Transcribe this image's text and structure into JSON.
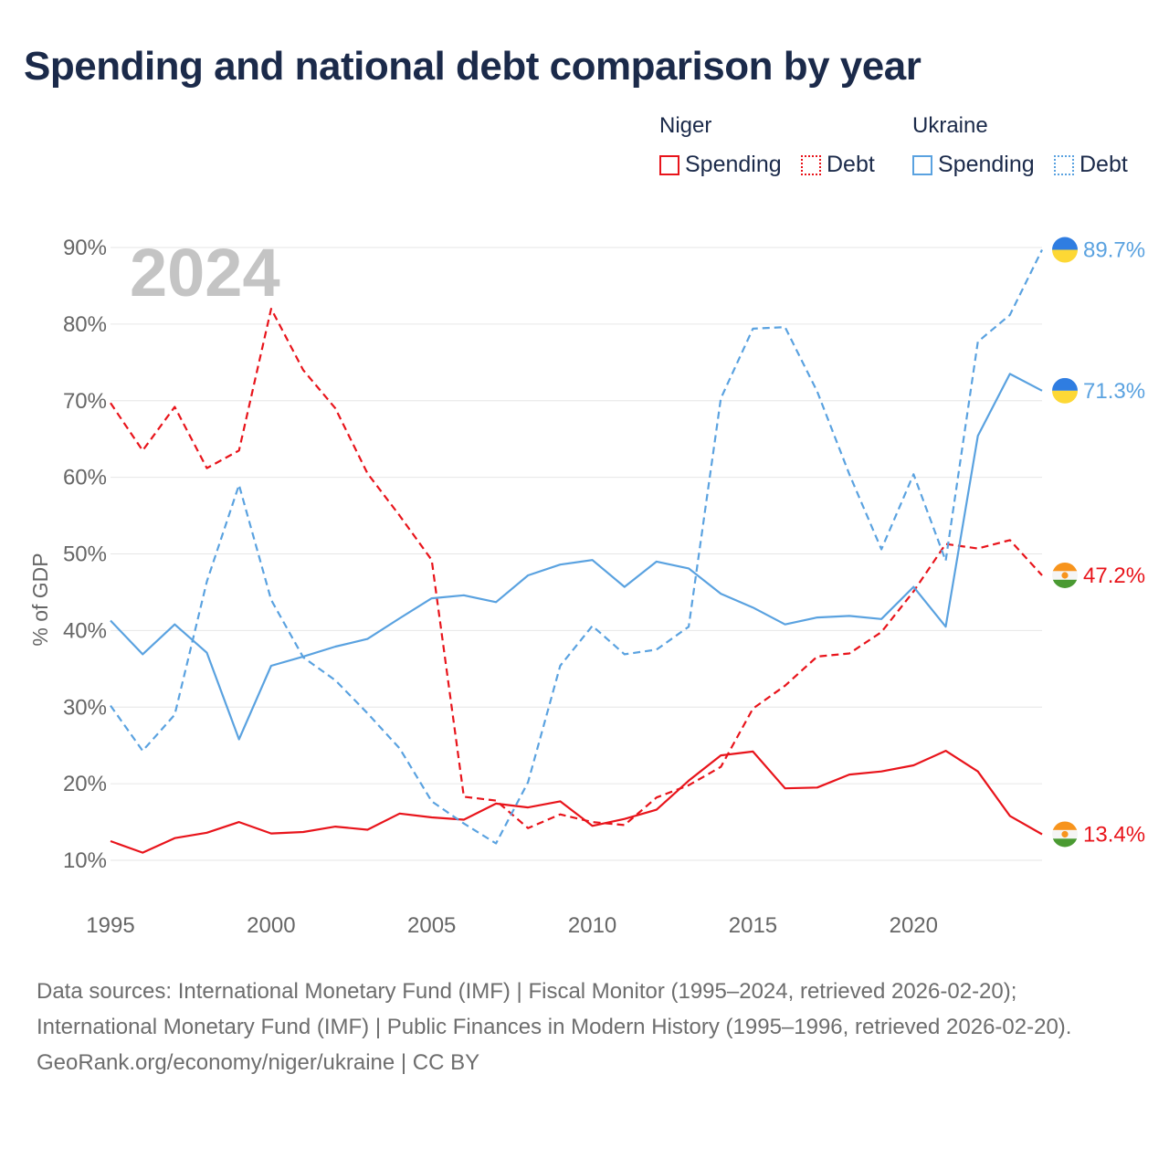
{
  "title": "Spending and national debt comparison by year",
  "legend": {
    "groups": [
      {
        "name": "Niger",
        "items": [
          "Spending",
          "Debt"
        ]
      },
      {
        "name": "Ukraine",
        "items": [
          "Spending",
          "Debt"
        ]
      }
    ]
  },
  "colors": {
    "niger": "#e8141b",
    "ukraine": "#5aa2e0",
    "grid": "#e6e6e6",
    "axis_text": "#666666",
    "year_watermark": "#c4c4c4"
  },
  "footer": {
    "sources": "Data sources: International Monetary Fund (IMF) | Fiscal Monitor (1995–2024, retrieved 2026-02-20); International Monetary Fund (IMF) | Public Finances in Modern History (1995–1996, retrieved 2026-02-20).",
    "attribution": "GeoRank.org/economy/niger/ukraine | CC BY"
  },
  "chart_data": {
    "type": "line",
    "title": "Spending and national debt comparison by year",
    "year_label": "2024",
    "xlabel": "",
    "ylabel": "% of GDP",
    "xlim": [
      1995,
      2024
    ],
    "ylim": [
      10,
      90
    ],
    "x_ticks": [
      1995,
      2000,
      2005,
      2010,
      2015,
      2020
    ],
    "y_ticks": [
      10,
      20,
      30,
      40,
      50,
      60,
      70,
      80,
      90
    ],
    "y_tick_labels": [
      "10%",
      "20%",
      "30%",
      "40%",
      "50%",
      "60%",
      "70%",
      "80%",
      "90%"
    ],
    "x": [
      1995,
      1996,
      1997,
      1998,
      1999,
      2000,
      2001,
      2002,
      2003,
      2004,
      2005,
      2006,
      2007,
      2008,
      2009,
      2010,
      2011,
      2012,
      2013,
      2014,
      2015,
      2016,
      2017,
      2018,
      2019,
      2020,
      2021,
      2022,
      2023,
      2024
    ],
    "series": [
      {
        "name": "Niger Spending",
        "country": "Niger",
        "measure": "Spending",
        "color": "#e8141b",
        "dash": "solid",
        "end_label": "13.4%",
        "values": [
          12.5,
          11.0,
          12.9,
          13.6,
          15.0,
          13.5,
          13.7,
          14.4,
          14.0,
          16.1,
          15.6,
          15.3,
          17.4,
          16.9,
          17.7,
          14.5,
          15.4,
          16.6,
          20.4,
          23.7,
          24.2,
          19.4,
          19.5,
          21.2,
          21.6,
          22.4,
          24.3,
          21.6,
          15.8,
          13.4
        ]
      },
      {
        "name": "Niger Debt",
        "country": "Niger",
        "measure": "Debt",
        "color": "#e8141b",
        "dash": "dashed",
        "end_label": "47.2%",
        "values": [
          69.7,
          63.5,
          69.2,
          61.2,
          63.5,
          82.0,
          74.0,
          69.0,
          60.5,
          55.0,
          49.2,
          18.3,
          17.8,
          14.2,
          16.0,
          15.0,
          14.6,
          18.2,
          19.8,
          22.2,
          29.8,
          32.8,
          36.6,
          37.0,
          39.8,
          45.1,
          51.3,
          50.7,
          51.8,
          47.2
        ]
      },
      {
        "name": "Ukraine Spending",
        "country": "Ukraine",
        "measure": "Spending",
        "color": "#5aa2e0",
        "dash": "solid",
        "end_label": "71.3%",
        "values": [
          41.3,
          36.9,
          40.8,
          37.1,
          25.8,
          35.4,
          36.6,
          37.9,
          38.9,
          41.6,
          44.2,
          44.6,
          43.7,
          47.2,
          48.6,
          49.2,
          45.7,
          49.0,
          48.1,
          44.8,
          43.0,
          40.8,
          41.7,
          41.9,
          41.5,
          45.7,
          40.5,
          65.4,
          73.5,
          71.3
        ]
      },
      {
        "name": "Ukraine Debt",
        "country": "Ukraine",
        "measure": "Debt",
        "color": "#5aa2e0",
        "dash": "dashed",
        "end_label": "89.7%",
        "values": [
          30.2,
          24.3,
          29.0,
          46.4,
          59.0,
          44.0,
          36.5,
          33.5,
          29.2,
          24.6,
          17.7,
          14.8,
          12.2,
          20.2,
          35.4,
          40.6,
          36.9,
          37.5,
          40.5,
          70.3,
          79.4,
          79.6,
          71.2,
          60.4,
          50.6,
          60.4,
          49.1,
          77.7,
          81.2,
          89.7
        ]
      }
    ]
  }
}
